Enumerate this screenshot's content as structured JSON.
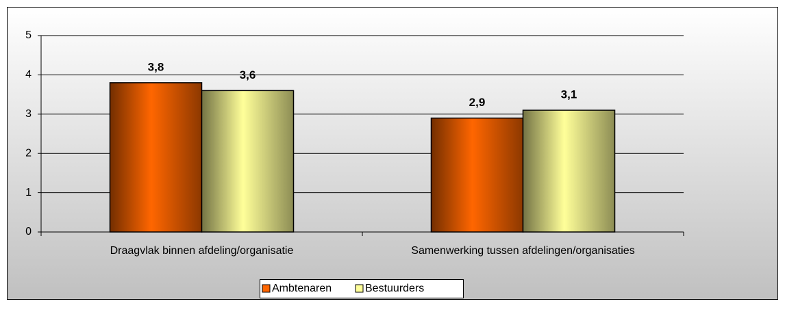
{
  "chart_data": {
    "type": "bar",
    "categories": [
      "Draagvlak binnen afdeling/organisatie",
      "Samenwerking tussen afdelingen/organisaties"
    ],
    "series": [
      {
        "name": "Ambtenaren",
        "color": "#ff6600",
        "values": [
          3.8,
          2.9
        ],
        "value_labels": [
          "3,8",
          "2,9"
        ]
      },
      {
        "name": "Bestuurders",
        "color": "#ffff99",
        "values": [
          3.6,
          3.1
        ],
        "value_labels": [
          "3,6",
          "3,1"
        ]
      }
    ],
    "ylim": [
      0,
      5
    ],
    "yticks": [
      0,
      1,
      2,
      3,
      4,
      5
    ],
    "grid": true,
    "legend": "bottom"
  }
}
